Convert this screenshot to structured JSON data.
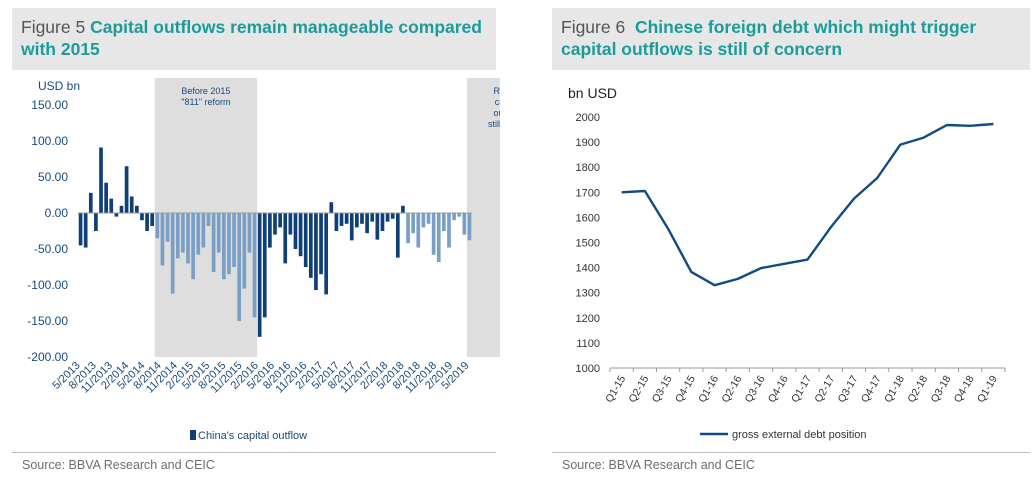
{
  "left": {
    "figure_label": "Figure 5",
    "title": "Capital outflows remain manageable compared with 2015",
    "source": "Source: BBVA Research and CEIC"
  },
  "right": {
    "figure_label": "Figure 6",
    "title": "Chinese foreign debt which might trigger capital outflows is still of concern",
    "source": "Source: BBVA Research and CEIC"
  },
  "colors": {
    "dark_blue": "#0e3f76",
    "light_blue": "#7a9fc6",
    "line_blue": "#124a84",
    "shade": "#dedede",
    "title_teal": "#1b9c9c"
  },
  "chart_data": [
    {
      "type": "bar",
      "ylabel": "USD bn",
      "ylim": [
        -200,
        150
      ],
      "yticks": [
        "150.00",
        "100.00",
        "50.00",
        "0.00",
        "-50.00",
        "-100.00",
        "-150.00",
        "-200.00"
      ],
      "xtick_labels": [
        "5/2013",
        "8/2013",
        "11/2013",
        "2/2014",
        "5/2014",
        "8/2014",
        "11/2014",
        "2/2015",
        "5/2015",
        "8/2015",
        "11/2015",
        "2/2016",
        "5/2016",
        "8/2016",
        "11/2016",
        "2/2017",
        "5/2017",
        "8/2017",
        "11/2017",
        "2/2018",
        "5/2018",
        "8/2018",
        "11/2018",
        "2/2019",
        "5/2019"
      ],
      "annotations": [
        {
          "text": "Before 2015 \"811\" reform",
          "lines": [
            "Before 2015",
            "\"811\" reform"
          ],
          "start_index": 15,
          "end_index": 35
        },
        {
          "text": "Recent capital outflow still stable",
          "lines": [
            "Recent",
            "capital",
            "outflow",
            "still stable"
          ],
          "start_index": 76,
          "end_index": 92
        }
      ],
      "legend": "China's capital outflow",
      "legend_position": "bottom",
      "grid": false,
      "series": [
        {
          "name": "China's capital outflow",
          "values": [
            -45,
            -48,
            28,
            -25,
            91,
            42,
            20,
            -5,
            10,
            65,
            23,
            10,
            -10,
            -25,
            -18,
            -35,
            -73,
            -40,
            -112,
            -63,
            -55,
            -70,
            -92,
            -58,
            -48,
            -18,
            -82,
            -55,
            -92,
            -85,
            -75,
            -150,
            -105,
            -55,
            -145,
            -172,
            -145,
            -48,
            -30,
            -20,
            -70,
            -30,
            -50,
            -60,
            -75,
            -90,
            -107,
            -85,
            -113,
            15,
            -25,
            -18,
            -15,
            -38,
            -20,
            -15,
            -28,
            -12,
            -37,
            -25,
            -12,
            -8,
            -62,
            10,
            -42,
            -28,
            -48,
            -20,
            -15,
            -58,
            -68,
            -25,
            -48,
            -10,
            -5,
            -30,
            -38
          ],
          "colors_by_period": "alternating shade groups of dark and light blue"
        }
      ]
    },
    {
      "type": "line",
      "ylabel": "bn USD",
      "ylim": [
        1000,
        2000
      ],
      "yticks": [
        "2000",
        "1900",
        "1800",
        "1700",
        "1600",
        "1500",
        "1400",
        "1300",
        "1200",
        "1100",
        "1000"
      ],
      "categories": [
        "Q1-15",
        "Q2-15",
        "Q3-15",
        "Q4-15",
        "Q1-16",
        "Q2-16",
        "Q3-16",
        "Q4-16",
        "Q1-17",
        "Q2-17",
        "Q3-17",
        "Q4-17",
        "Q1-18",
        "Q2-18",
        "Q3-18",
        "Q4-18",
        "Q1-19"
      ],
      "legend": "gross external debt position",
      "legend_position": "bottom",
      "grid": false,
      "series": [
        {
          "name": "gross external debt position",
          "values": [
            1700,
            1705,
            1555,
            1383,
            1330,
            1355,
            1398,
            1415,
            1432,
            1560,
            1675,
            1757,
            1890,
            1918,
            1968,
            1965,
            1972
          ]
        }
      ]
    }
  ]
}
